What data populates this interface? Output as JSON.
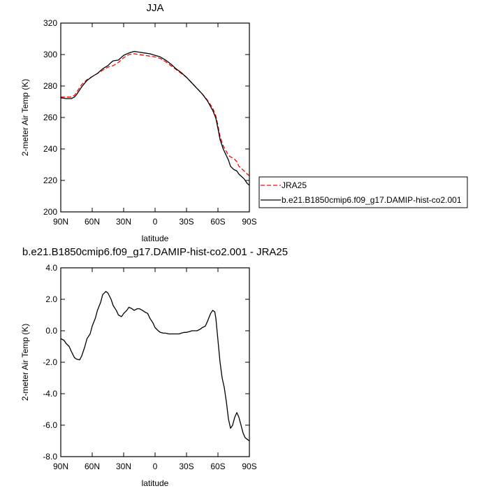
{
  "chart_data": [
    {
      "type": "line",
      "title": "JJA",
      "xlabel": "latitude",
      "ylabel": "2-meter Air Temp (K)",
      "xlim": [
        90,
        -90
      ],
      "ylim": [
        200,
        320
      ],
      "xticks": [
        90,
        60,
        30,
        0,
        -30,
        -60,
        -90
      ],
      "xtick_labels": [
        "90N",
        "60N",
        "30N",
        "0",
        "30S",
        "60S",
        "90S"
      ],
      "yticks": [
        200,
        220,
        240,
        260,
        280,
        300,
        320
      ],
      "ytick_labels": [
        "200",
        "220",
        "240",
        "260",
        "280",
        "300",
        "320"
      ],
      "legend_position": "right",
      "series": [
        {
          "name": "JRA25",
          "color": "#ff0000",
          "dashed": true,
          "x": [
            90,
            85,
            80,
            77,
            75,
            70,
            65,
            60,
            55,
            50,
            45,
            40,
            35,
            30,
            25,
            20,
            15,
            10,
            5,
            0,
            -5,
            -10,
            -15,
            -20,
            -25,
            -30,
            -35,
            -40,
            -45,
            -50,
            -55,
            -58,
            -60,
            -62,
            -65,
            -70,
            -72,
            -75,
            -78,
            -80,
            -85,
            -88,
            -90
          ],
          "y": [
            273,
            273,
            273,
            274,
            276,
            281,
            284,
            286,
            288,
            290,
            292,
            293,
            295,
            298,
            300,
            300.5,
            300,
            299.5,
            299,
            298.5,
            297.5,
            295.5,
            293,
            290.5,
            288,
            285.5,
            282,
            278.5,
            275,
            271,
            266,
            261,
            255,
            248,
            242,
            236,
            235,
            234,
            232,
            229,
            226,
            224,
            223
          ]
        },
        {
          "name": "b.e21.B1850cmip6.f09_g17.DAMIP-hist-co2.001",
          "color": "#000000",
          "dashed": false,
          "x": [
            90,
            85,
            80,
            77,
            75,
            70,
            65,
            60,
            55,
            50,
            45,
            42,
            40,
            35,
            30,
            25,
            20,
            15,
            10,
            5,
            0,
            -5,
            -10,
            -15,
            -20,
            -25,
            -30,
            -35,
            -40,
            -45,
            -50,
            -55,
            -58,
            -60,
            -62,
            -65,
            -70,
            -72,
            -75,
            -78,
            -80,
            -85,
            -88,
            -90
          ],
          "y": [
            272.5,
            272,
            272,
            273,
            274.5,
            279.5,
            283.5,
            286,
            288,
            291,
            293,
            295,
            296,
            296.5,
            299.5,
            301,
            302,
            301.5,
            301,
            300.5,
            299.5,
            298.5,
            296.5,
            294,
            291,
            288.5,
            285.5,
            282,
            278.5,
            275,
            270.5,
            264.5,
            259.5,
            253,
            246,
            240,
            233,
            229,
            227,
            226,
            224,
            221,
            218,
            217
          ]
        }
      ]
    },
    {
      "type": "line",
      "title": "b.e21.B1850cmip6.f09_g17.DAMIP-hist-co2.001 - JRA25",
      "xlabel": "latitude",
      "ylabel": "2-meter Air Temp (K)",
      "xlim": [
        90,
        -90
      ],
      "ylim": [
        -8,
        4
      ],
      "xticks": [
        90,
        60,
        30,
        0,
        -30,
        -60,
        -90
      ],
      "xtick_labels": [
        "90N",
        "60N",
        "30N",
        "0",
        "30S",
        "60S",
        "90S"
      ],
      "yticks": [
        -8,
        -6,
        -4,
        -2,
        0,
        2,
        4
      ],
      "ytick_labels": [
        "-8.0",
        "-6.0",
        "-4.0",
        "-2.0",
        "0.0",
        "2.0",
        "4.0"
      ],
      "series": [
        {
          "color": "#000000",
          "dashed": false,
          "x": [
            90,
            87,
            85,
            82,
            80,
            77,
            75,
            72,
            70,
            67,
            65,
            62,
            60,
            57,
            55,
            52,
            50,
            47,
            45,
            42,
            40,
            37,
            35,
            32,
            30,
            27,
            25,
            22,
            20,
            17,
            15,
            12,
            10,
            7,
            5,
            2,
            0,
            -3,
            -5,
            -8,
            -10,
            -13,
            -15,
            -18,
            -20,
            -23,
            -25,
            -28,
            -30,
            -33,
            -35,
            -38,
            -40,
            -43,
            -45,
            -48,
            -50,
            -53,
            -55,
            -57,
            -58,
            -60,
            -62,
            -64,
            -66,
            -68,
            -70,
            -72,
            -74,
            -76,
            -78,
            -80,
            -82,
            -84,
            -86,
            -88,
            -90
          ],
          "y": [
            -0.5,
            -0.6,
            -0.8,
            -1.0,
            -1.3,
            -1.7,
            -1.8,
            -1.85,
            -1.6,
            -1.0,
            -0.5,
            -0.2,
            0.3,
            0.8,
            1.3,
            1.8,
            2.3,
            2.5,
            2.4,
            2.0,
            1.6,
            1.3,
            1.0,
            0.9,
            1.1,
            1.3,
            1.5,
            1.4,
            1.3,
            1.4,
            1.4,
            1.3,
            1.2,
            1.1,
            0.8,
            0.5,
            0.2,
            0.0,
            -0.1,
            -0.15,
            -0.15,
            -0.2,
            -0.2,
            -0.2,
            -0.2,
            -0.2,
            -0.15,
            -0.1,
            -0.1,
            -0.05,
            0.0,
            0.0,
            0.0,
            0.1,
            0.2,
            0.3,
            0.6,
            1.1,
            1.3,
            1.2,
            0.8,
            -0.6,
            -2.0,
            -3.0,
            -3.6,
            -4.5,
            -5.6,
            -6.2,
            -6.0,
            -5.5,
            -5.2,
            -5.5,
            -6.0,
            -6.5,
            -6.8,
            -6.9,
            -7.0
          ]
        }
      ]
    }
  ]
}
